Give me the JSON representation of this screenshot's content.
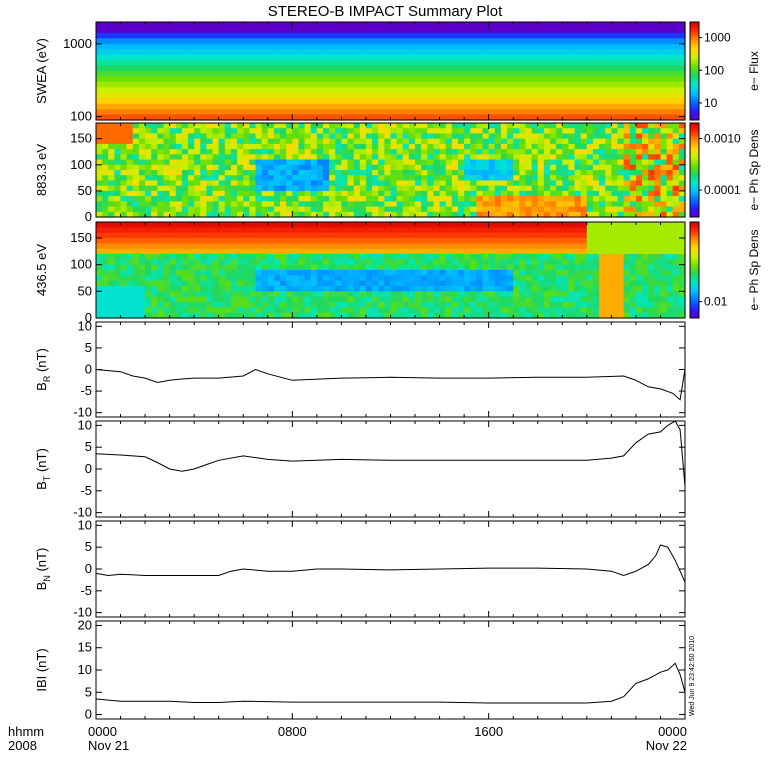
{
  "title": "STEREO-B IMPACT Summary Plot",
  "footer": {
    "row1_label": "hhmm",
    "row2_label": "2008",
    "ticks": [
      {
        "time_hhmm": "0000",
        "date": "Nov 21",
        "hours": 0
      },
      {
        "time_hhmm": "0800",
        "date": "",
        "hours": 8
      },
      {
        "time_hhmm": "1600",
        "date": "",
        "hours": 16
      },
      {
        "time_hhmm": "0000",
        "date": "Nov 22",
        "hours": 24
      }
    ]
  },
  "stamp": "Wed Jun  9 23:42:50 2010",
  "chart_data": [
    {
      "type": "heatmap",
      "ylabel": "SWEA (eV)",
      "yscale": "log",
      "ylim": [
        90,
        2000
      ],
      "yticks": [
        {
          "value": 1000,
          "label": "1000"
        },
        {
          "value": 100,
          "label": "100"
        }
      ],
      "colorbar_label": "e− Flux",
      "colorbar_scale": "log",
      "colorbar_range": [
        3,
        3000
      ],
      "colorbar_ticks": [
        {
          "value": 1000,
          "label": "1000"
        },
        {
          "value": 100,
          "label": "100"
        },
        {
          "value": 10,
          "label": "10"
        }
      ],
      "xlim_hours": [
        0,
        24
      ]
    },
    {
      "type": "heatmap",
      "ylabel": "883.3 eV",
      "ylim": [
        0,
        180
      ],
      "yticks": [
        {
          "value": 150,
          "label": "150"
        },
        {
          "value": 100,
          "label": "100"
        },
        {
          "value": 50,
          "label": "50"
        },
        {
          "value": 0,
          "label": "0"
        }
      ],
      "colorbar_label": "e− Ph Sp Dens",
      "colorbar_scale": "log",
      "colorbar_range": [
        3e-05,
        0.002
      ],
      "colorbar_ticks": [
        {
          "value": 0.001,
          "label": "0.0010"
        },
        {
          "value": 0.0001,
          "label": "0.0001"
        }
      ],
      "xlim_hours": [
        0,
        24
      ]
    },
    {
      "type": "heatmap",
      "ylabel": "436.5 eV",
      "ylim": [
        0,
        180
      ],
      "yticks": [
        {
          "value": 150,
          "label": "150"
        },
        {
          "value": 100,
          "label": "100"
        },
        {
          "value": 50,
          "label": "50"
        },
        {
          "value": 0,
          "label": "0"
        }
      ],
      "colorbar_label": "e− Ph Sp Dens",
      "colorbar_scale": "log",
      "colorbar_range": [
        0.006,
        0.12
      ],
      "colorbar_ticks": [
        {
          "value": 0.01,
          "label": "0.01"
        }
      ],
      "xlim_hours": [
        0,
        24
      ]
    },
    {
      "type": "line",
      "ylabel": "B",
      "ylabel_sub": "R",
      "ylabel_unit": " (nT)",
      "ylim": [
        -11,
        11
      ],
      "yticks": [
        10,
        5,
        0,
        -5,
        -10
      ],
      "xlim_hours": [
        0,
        24
      ],
      "x": [
        0,
        1,
        1.5,
        2,
        2.5,
        3,
        3.5,
        4,
        5,
        6,
        6.5,
        7,
        8,
        10,
        12,
        14,
        16,
        18,
        20,
        21.5,
        22,
        22.5,
        23,
        23.5,
        23.8,
        24
      ],
      "y": [
        0,
        -0.5,
        -1.5,
        -2,
        -3,
        -2.5,
        -2.2,
        -2,
        -2,
        -1.5,
        0,
        -1,
        -2.5,
        -2,
        -1.8,
        -2,
        -2,
        -1.8,
        -1.8,
        -1.5,
        -2.5,
        -4,
        -4.5,
        -5.5,
        -7,
        0
      ]
    },
    {
      "type": "line",
      "ylabel": "B",
      "ylabel_sub": "T",
      "ylabel_unit": " (nT)",
      "ylim": [
        -11,
        11
      ],
      "yticks": [
        10,
        5,
        0,
        -5,
        -10
      ],
      "xlim_hours": [
        0,
        24
      ],
      "x": [
        0,
        1,
        2,
        2.5,
        3,
        3.5,
        4,
        4.5,
        5,
        6,
        7,
        8,
        10,
        12,
        14,
        16,
        18,
        20,
        21,
        21.5,
        22,
        22.5,
        23,
        23.3,
        23.6,
        23.8,
        24
      ],
      "y": [
        3.5,
        3.2,
        2.8,
        1.5,
        0,
        -0.5,
        0,
        1,
        2,
        3,
        2.2,
        1.8,
        2.2,
        2,
        2,
        2,
        2,
        2,
        2.5,
        3,
        6,
        8,
        8.5,
        10,
        11,
        9,
        -4
      ]
    },
    {
      "type": "line",
      "ylabel": "B",
      "ylabel_sub": "N",
      "ylabel_unit": " (nT)",
      "ylim": [
        -11,
        11
      ],
      "yticks": [
        10,
        5,
        0,
        -5,
        -10
      ],
      "xlim_hours": [
        0,
        24
      ],
      "x": [
        0,
        0.5,
        1,
        2,
        3,
        4,
        5,
        5.5,
        6,
        7,
        8,
        9,
        10,
        12,
        14,
        16,
        18,
        20,
        21,
        21.5,
        22,
        22.5,
        22.8,
        23,
        23.3,
        23.6,
        24
      ],
      "y": [
        -1,
        -1.5,
        -1.2,
        -1.5,
        -1.5,
        -1.5,
        -1.5,
        -0.5,
        0,
        -0.5,
        -0.5,
        0,
        0,
        -0.2,
        0,
        0.2,
        0.2,
        0,
        -0.5,
        -1.5,
        -0.5,
        1,
        3,
        5.5,
        5,
        2,
        -3
      ]
    },
    {
      "type": "line",
      "ylabel": "IBI (nT)",
      "ylim": [
        -1,
        21
      ],
      "yticks": [
        20,
        15,
        10,
        5,
        0
      ],
      "xlim_hours": [
        0,
        24
      ],
      "x": [
        0,
        1,
        2,
        3,
        4,
        5,
        6,
        8,
        10,
        12,
        14,
        16,
        18,
        20,
        21,
        21.5,
        22,
        22.5,
        23,
        23.3,
        23.6,
        23.8,
        24
      ],
      "y": [
        3.5,
        3,
        3,
        3,
        2.7,
        2.7,
        3,
        2.8,
        2.8,
        2.8,
        2.8,
        2.6,
        2.6,
        2.6,
        3,
        4,
        7,
        8,
        9.5,
        10,
        11.5,
        9,
        5
      ]
    }
  ]
}
